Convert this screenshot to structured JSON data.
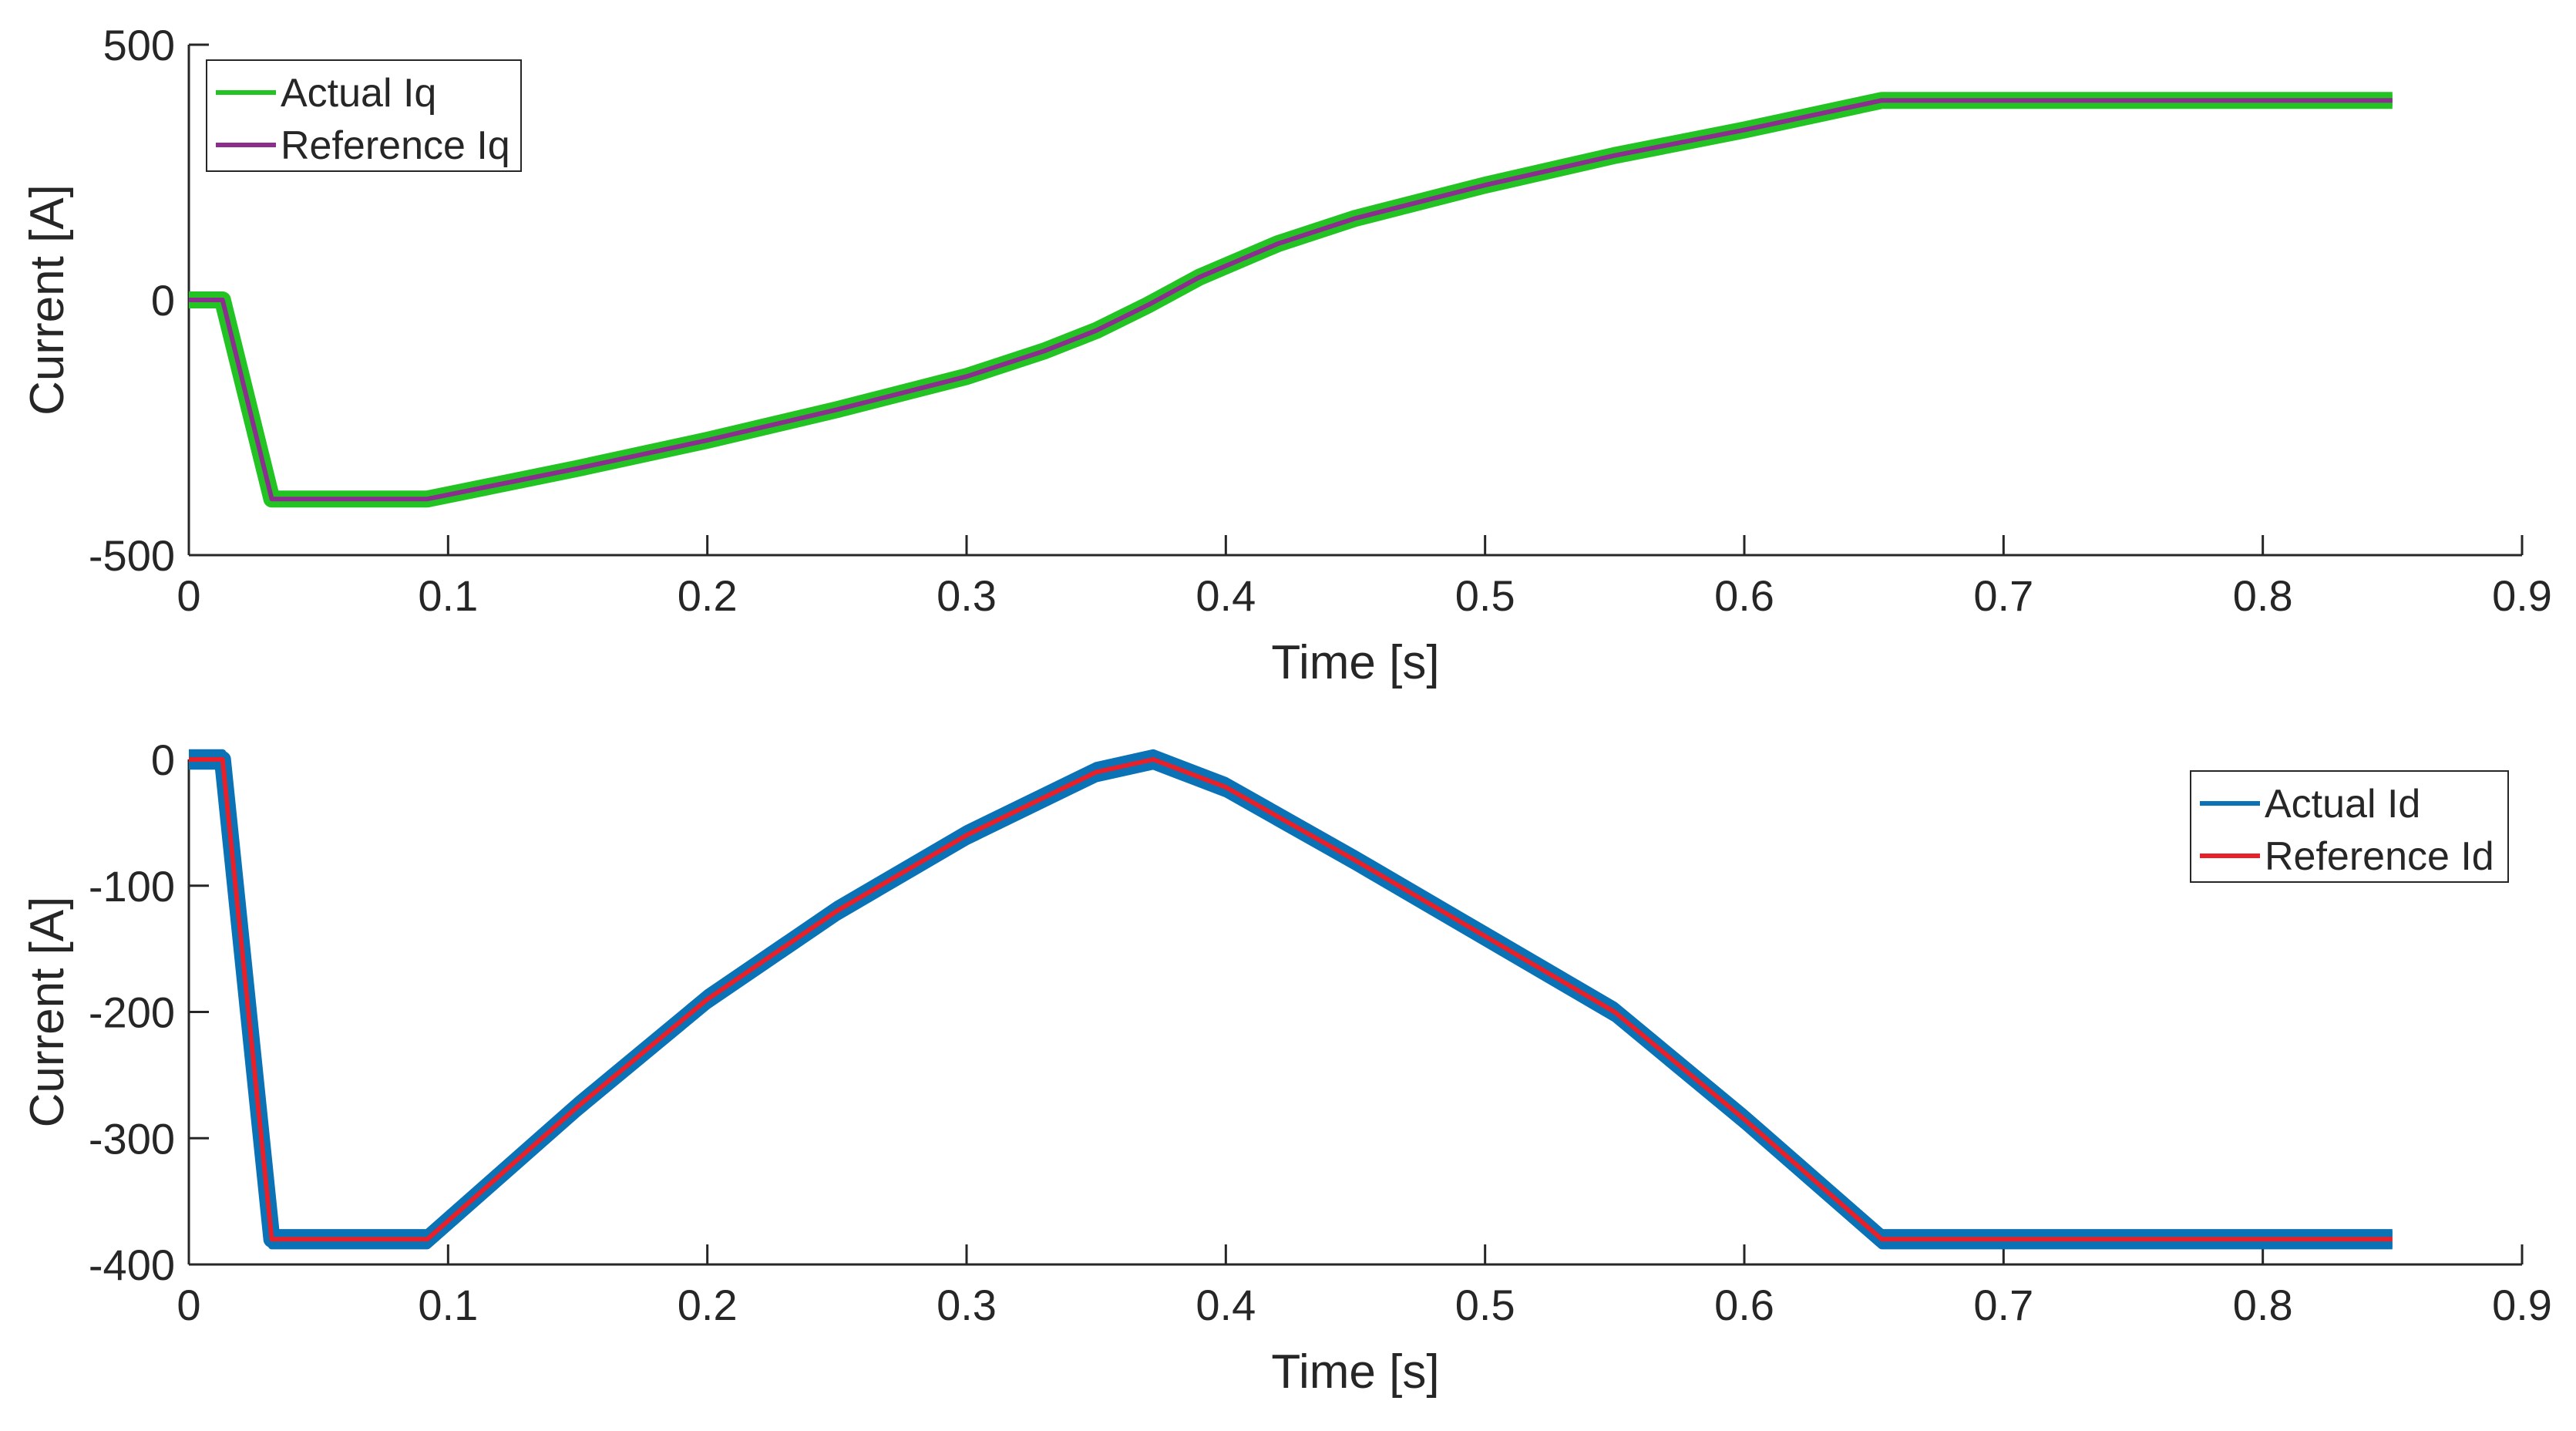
{
  "chart_data": [
    {
      "type": "line",
      "xlabel": "Time [s]",
      "ylabel": "Current [A]",
      "xlim": [
        0,
        0.9
      ],
      "ylim": [
        -500,
        500
      ],
      "xticks": [
        "0",
        "0.1",
        "0.2",
        "0.3",
        "0.4",
        "0.5",
        "0.6",
        "0.7",
        "0.8",
        "0.9"
      ],
      "yticks": [
        "-500",
        "0",
        "500"
      ],
      "grid": false,
      "legend_position": "top-left",
      "series": [
        {
          "name": "Actual Iq",
          "color": "#22c322",
          "band": 8,
          "x": [
            0,
            0.013,
            0.032,
            0.033,
            0.092,
            0.15,
            0.2,
            0.25,
            0.3,
            0.33,
            0.35,
            0.37,
            0.39,
            0.42,
            0.45,
            0.5,
            0.55,
            0.6,
            0.653,
            0.7,
            0.75,
            0.8,
            0.85
          ],
          "y": [
            0,
            0,
            -390,
            -390,
            -390,
            -330,
            -275,
            -215,
            -150,
            -100,
            -60,
            -10,
            45,
            110,
            160,
            225,
            283,
            333,
            391,
            391,
            391,
            391,
            391
          ]
        },
        {
          "name": "Reference Iq",
          "color": "#8a2f8e",
          "band": 0,
          "x": [
            0,
            0.013,
            0.032,
            0.033,
            0.092,
            0.15,
            0.2,
            0.25,
            0.3,
            0.33,
            0.35,
            0.37,
            0.39,
            0.42,
            0.45,
            0.5,
            0.55,
            0.6,
            0.653,
            0.7,
            0.75,
            0.8,
            0.85
          ],
          "y": [
            0,
            0,
            -390,
            -390,
            -390,
            -330,
            -275,
            -215,
            -150,
            -100,
            -60,
            -10,
            45,
            110,
            160,
            225,
            283,
            333,
            391,
            391,
            391,
            391,
            391
          ]
        }
      ]
    },
    {
      "type": "line",
      "xlabel": "Time [s]",
      "ylabel": "Current [A]",
      "xlim": [
        0,
        0.9
      ],
      "ylim": [
        -400,
        0
      ],
      "xticks": [
        "0",
        "0.1",
        "0.2",
        "0.3",
        "0.4",
        "0.5",
        "0.6",
        "0.7",
        "0.8",
        "0.9"
      ],
      "yticks": [
        "0",
        "-100",
        "-200",
        "-300",
        "-400"
      ],
      "grid": false,
      "legend_position": "top-right",
      "series": [
        {
          "name": "Actual Id",
          "color": "#0a72b5",
          "band": 10,
          "x": [
            0,
            0.013,
            0.032,
            0.033,
            0.092,
            0.15,
            0.2,
            0.25,
            0.3,
            0.35,
            0.372,
            0.4,
            0.45,
            0.5,
            0.55,
            0.6,
            0.653,
            0.7,
            0.75,
            0.8,
            0.85
          ],
          "y": [
            0,
            0,
            -380,
            -380,
            -380,
            -275,
            -190,
            -120,
            -60,
            -10,
            0,
            -22,
            -80,
            -140,
            -200,
            -285,
            -380,
            -380,
            -380,
            -380,
            -380
          ]
        },
        {
          "name": "Reference Id",
          "color": "#e8202a",
          "band": 0,
          "x": [
            0,
            0.013,
            0.032,
            0.033,
            0.092,
            0.15,
            0.2,
            0.25,
            0.3,
            0.35,
            0.372,
            0.4,
            0.45,
            0.5,
            0.55,
            0.6,
            0.653,
            0.7,
            0.75,
            0.8,
            0.85
          ],
          "y": [
            0,
            0,
            -380,
            -380,
            -380,
            -275,
            -190,
            -120,
            -60,
            -10,
            0,
            -22,
            -80,
            -140,
            -200,
            -285,
            -380,
            -380,
            -380,
            -380,
            -380
          ]
        }
      ]
    }
  ]
}
